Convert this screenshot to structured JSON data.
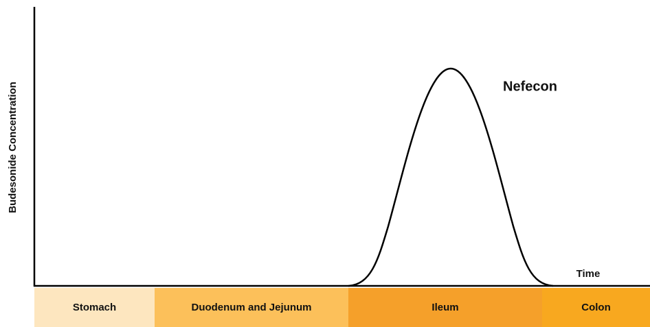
{
  "y_axis_label": "Budesonide Concentration",
  "x_axis_label": "Time",
  "curve_label": "Nefecon",
  "regions": [
    "Stomach",
    "Duodenum and Jejunum",
    "Ileum",
    "Colon"
  ]
}
